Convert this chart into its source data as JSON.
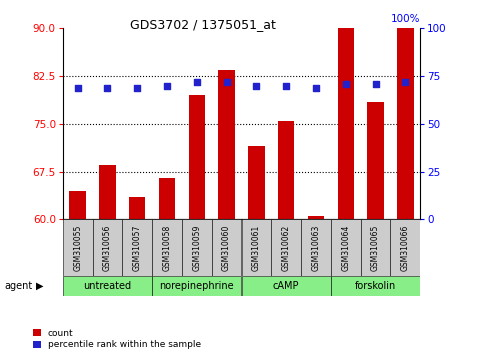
{
  "title": "GDS3702 / 1375051_at",
  "samples": [
    "GSM310055",
    "GSM310056",
    "GSM310057",
    "GSM310058",
    "GSM310059",
    "GSM310060",
    "GSM310061",
    "GSM310062",
    "GSM310063",
    "GSM310064",
    "GSM310065",
    "GSM310066"
  ],
  "counts": [
    64.5,
    68.5,
    63.5,
    66.5,
    79.5,
    83.5,
    71.5,
    75.5,
    60.5,
    90.0,
    78.5,
    90.0
  ],
  "percentiles": [
    69,
    69,
    69,
    70,
    72,
    72,
    70,
    70,
    69,
    71,
    71,
    72
  ],
  "agents": [
    {
      "label": "untreated",
      "start": 0,
      "end": 3
    },
    {
      "label": "norepinephrine",
      "start": 3,
      "end": 6
    },
    {
      "label": "cAMP",
      "start": 6,
      "end": 9
    },
    {
      "label": "forskolin",
      "start": 9,
      "end": 12
    }
  ],
  "ylim_left": [
    60,
    90
  ],
  "ylim_right": [
    0,
    100
  ],
  "yticks_left": [
    60,
    67.5,
    75,
    82.5,
    90
  ],
  "yticks_right": [
    0,
    25,
    50,
    75,
    100
  ],
  "bar_color": "#cc0000",
  "scatter_color": "#2222cc",
  "agent_bg_color": "#88ee88",
  "sample_bg_color": "#cccccc",
  "bar_width": 0.55,
  "right_axis_label": "100%"
}
